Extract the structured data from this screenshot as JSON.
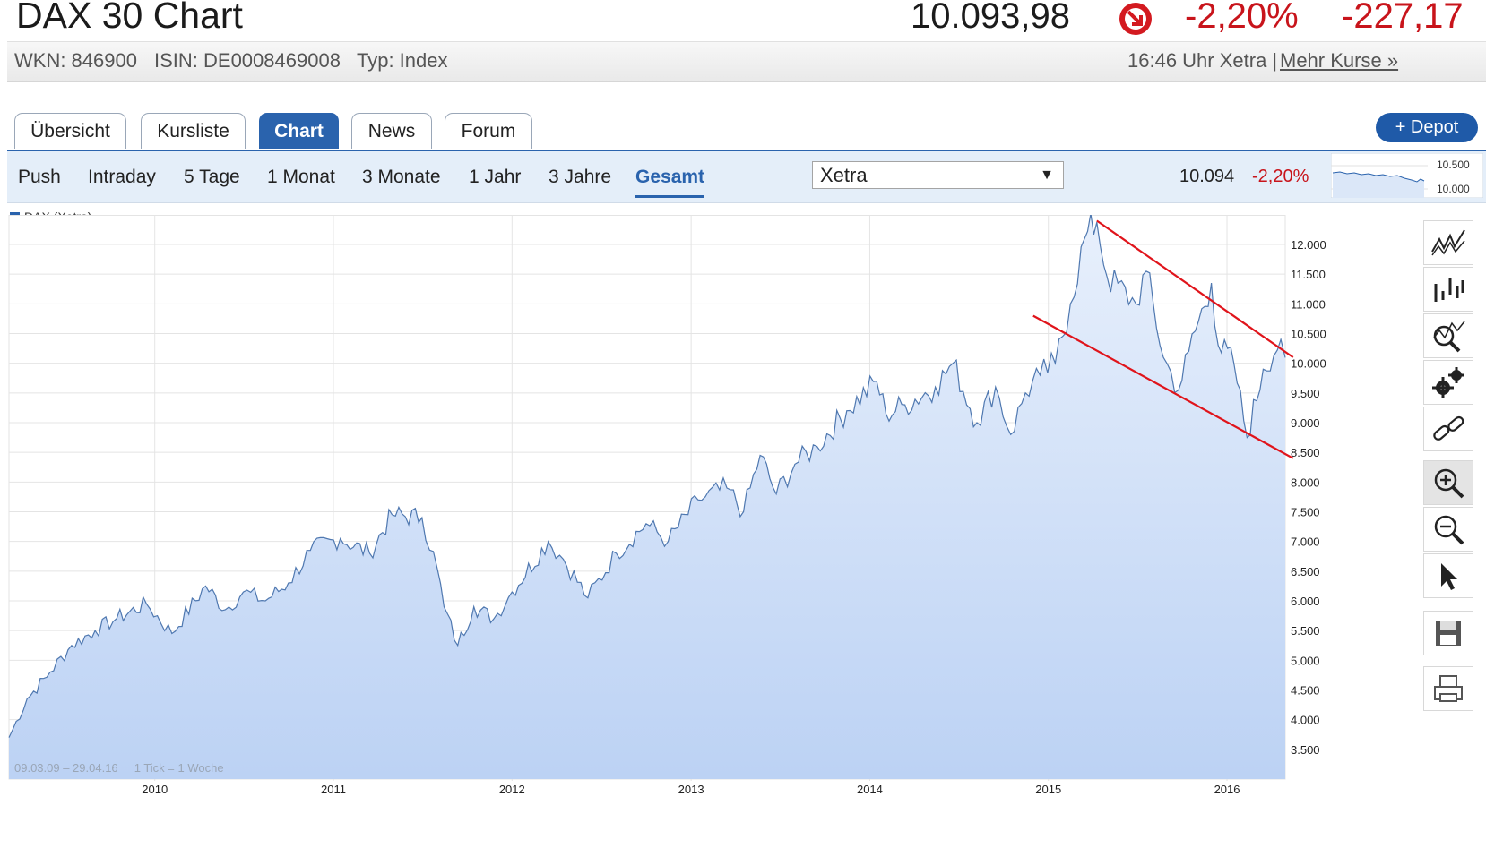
{
  "header": {
    "title": "DAX 30 Chart",
    "price": "10.093,98",
    "change_pct": "-2,20%",
    "change_abs": "-227,17",
    "wkn": "WKN: 846900",
    "isin": "ISIN: DE0008469008",
    "typ": "Typ: Index",
    "time_exchange": "16:46 Uhr Xetra |",
    "more_link": "Mehr Kurse »"
  },
  "tabs": [
    {
      "label": "Übersicht"
    },
    {
      "label": "Kursliste"
    },
    {
      "label": "Chart",
      "active": true
    },
    {
      "label": "News"
    },
    {
      "label": "Forum"
    }
  ],
  "depot_button": "+ Depot",
  "ranges": [
    "Push",
    "Intraday",
    "5 Tage",
    "1 Monat",
    "3 Monate",
    "1 Jahr",
    "3 Jahre",
    "Gesamt"
  ],
  "active_range": "Gesamt",
  "exchange_select": "Xetra",
  "quote_last": "10.094",
  "quote_pct": "-2,20%",
  "mini_chart": {
    "high_label": "10.500",
    "low_label": "10.000"
  },
  "legend": "DAX (Xetra)",
  "footer_note": "09.03.09 – 29.04.16     1 Tick = 1 Woche",
  "colors": {
    "accent": "#2a63ad",
    "negative": "#c8141b",
    "trendline": "#e0141b",
    "area": "#c4d8f6"
  },
  "toolbar": [
    "line-chart-icon",
    "ohlc-chart-icon",
    "indicator-icon",
    "settings-icon",
    "link-icon",
    "zoom-in-icon",
    "zoom-out-icon",
    "pointer-icon",
    "save-icon",
    "print-icon"
  ],
  "chart_data": {
    "type": "area",
    "series": [
      {
        "name": "DAX (Xetra)",
        "x": [
          "2009-03-09",
          "2009-04-15",
          "2009-06-01",
          "2009-07-15",
          "2009-09-01",
          "2009-10-15",
          "2009-12-15",
          "2010-02-05",
          "2010-04-15",
          "2010-05-25",
          "2010-07-01",
          "2010-08-15",
          "2010-10-01",
          "2010-11-15",
          "2011-01-15",
          "2011-03-16",
          "2011-05-01",
          "2011-07-01",
          "2011-08-01",
          "2011-08-15",
          "2011-09-12",
          "2011-10-15",
          "2011-11-25",
          "2012-01-01",
          "2012-03-15",
          "2012-04-15",
          "2012-06-04",
          "2012-08-01",
          "2012-10-01",
          "2012-11-15",
          "2013-01-15",
          "2013-03-15",
          "2013-04-18",
          "2013-05-22",
          "2013-06-24",
          "2013-08-01",
          "2013-09-15",
          "2013-11-15",
          "2014-01-15",
          "2014-02-03",
          "2014-03-14",
          "2014-05-15",
          "2014-06-20",
          "2014-08-08",
          "2014-09-15",
          "2014-10-16",
          "2014-11-15",
          "2014-12-15",
          "2015-01-15",
          "2015-02-15",
          "2015-03-16",
          "2015-04-10",
          "2015-05-01",
          "2015-06-29",
          "2015-07-20",
          "2015-08-24",
          "2015-09-24",
          "2015-10-15",
          "2015-11-30",
          "2015-12-14",
          "2016-01-15",
          "2016-02-11",
          "2016-03-15",
          "2016-04-20",
          "2016-04-29"
        ],
        "values": [
          3700,
          4350,
          4800,
          5250,
          5500,
          5700,
          5950,
          5450,
          6250,
          5850,
          6150,
          6000,
          6300,
          6850,
          7050,
          6800,
          7450,
          7400,
          6550,
          5900,
          5250,
          5900,
          5700,
          6150,
          7000,
          6700,
          6050,
          6800,
          7300,
          7000,
          7700,
          7900,
          7500,
          8450,
          7800,
          8300,
          8600,
          9200,
          9700,
          9150,
          9300,
          9600,
          10000,
          9000,
          9600,
          8800,
          9500,
          9800,
          10000,
          11000,
          12100,
          12374,
          11450,
          11000,
          11550,
          10100,
          9550,
          10200,
          11350,
          10300,
          10000,
          8750,
          9900,
          10400,
          10094
        ]
      }
    ],
    "trendlines": [
      {
        "from": [
          "2015-04-10",
          12400
        ],
        "to": [
          "2016-05-15",
          10100
        ]
      },
      {
        "from": [
          "2014-12-01",
          10800
        ],
        "to": [
          "2016-05-15",
          8400
        ]
      }
    ],
    "xlim": [
      "2009-03-09",
      "2016-04-29"
    ],
    "xticks": [
      "2010",
      "2011",
      "2012",
      "2013",
      "2014",
      "2015",
      "2016"
    ],
    "ylim": [
      3000,
      12500
    ],
    "yticks": [
      "3.500",
      "4.000",
      "4.500",
      "5.000",
      "5.500",
      "6.000",
      "6.500",
      "7.000",
      "7.500",
      "8.000",
      "8.500",
      "9.000",
      "9.500",
      "10.000",
      "10.500",
      "11.000",
      "11.500",
      "12.000"
    ],
    "grid": true
  }
}
